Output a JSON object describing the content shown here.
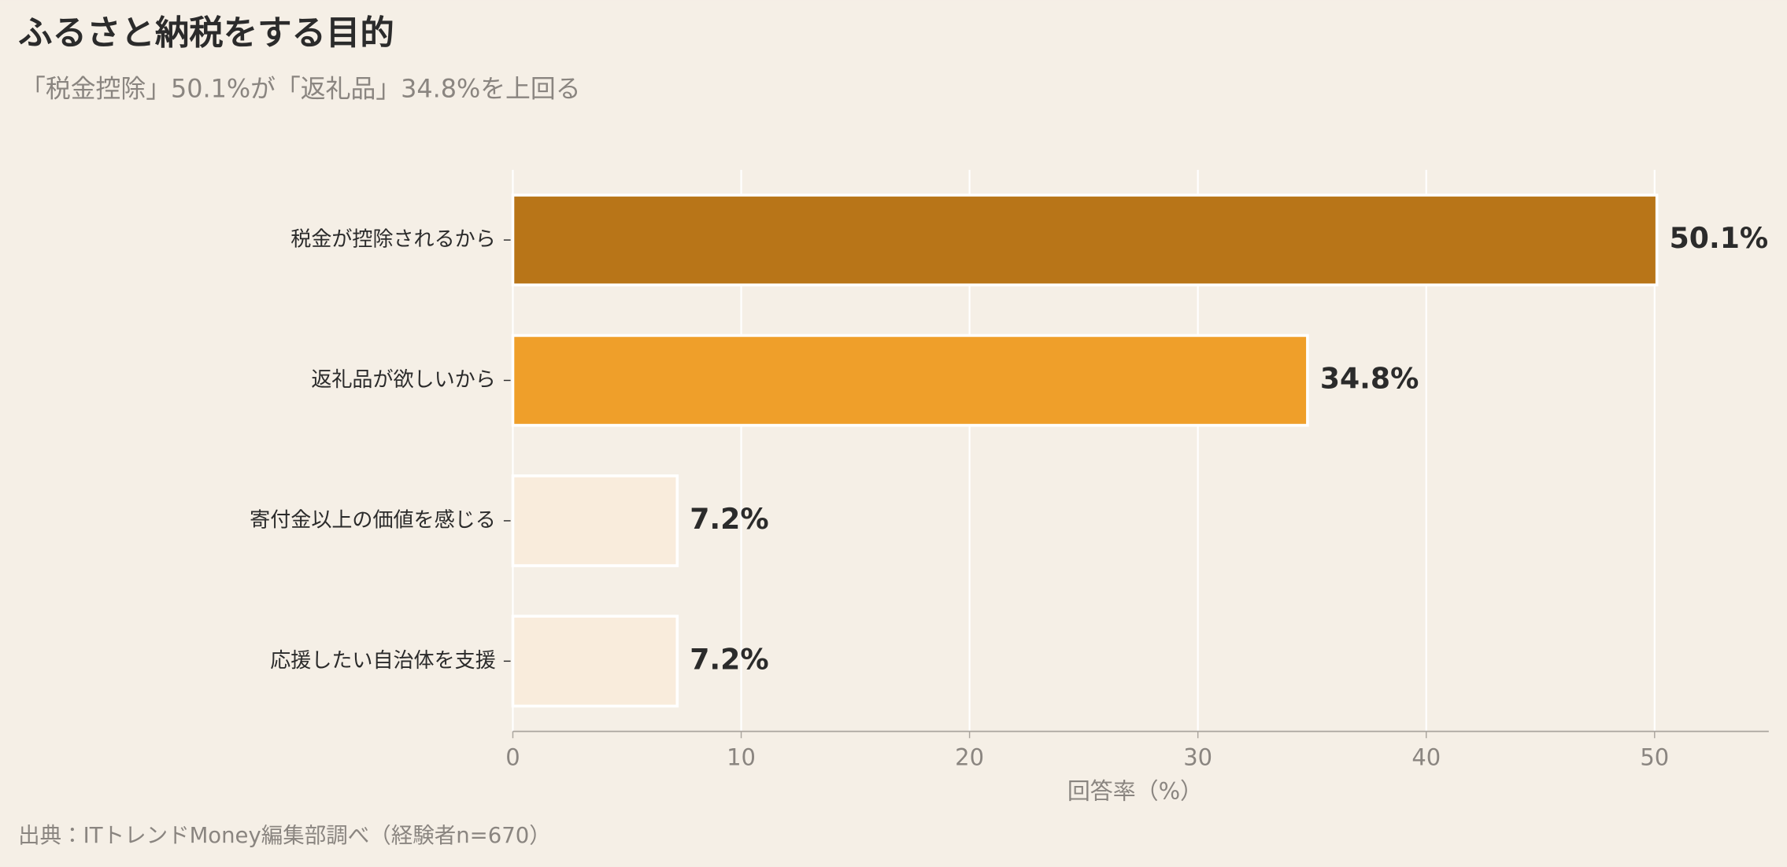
{
  "chart_data": {
    "type": "barh",
    "title": "ふるさと納税をする目的",
    "subtitle": "「税金控除」50.1%が「返礼品」34.8%を上回る",
    "x_label": "回答率（%）",
    "source": "出典：ITトレンドMoney編集部調べ（経験者n=670）",
    "categories": [
      "税金が控除されるから",
      "返礼品が欲しいから",
      "寄付金以上の価値を感じる",
      "応援したい自治体を支援"
    ],
    "values": [
      50.1,
      34.8,
      7.2,
      7.2
    ],
    "value_labels": [
      "50.1%",
      "34.8%",
      "7.2%",
      "7.2%"
    ],
    "colors": [
      "#b87518",
      "#ef9f2a",
      "#f9ecdc",
      "#f9ecdc"
    ],
    "xlim": [
      0,
      55
    ],
    "xticks": [
      0,
      10,
      20,
      30,
      40,
      50
    ],
    "grid": true
  }
}
